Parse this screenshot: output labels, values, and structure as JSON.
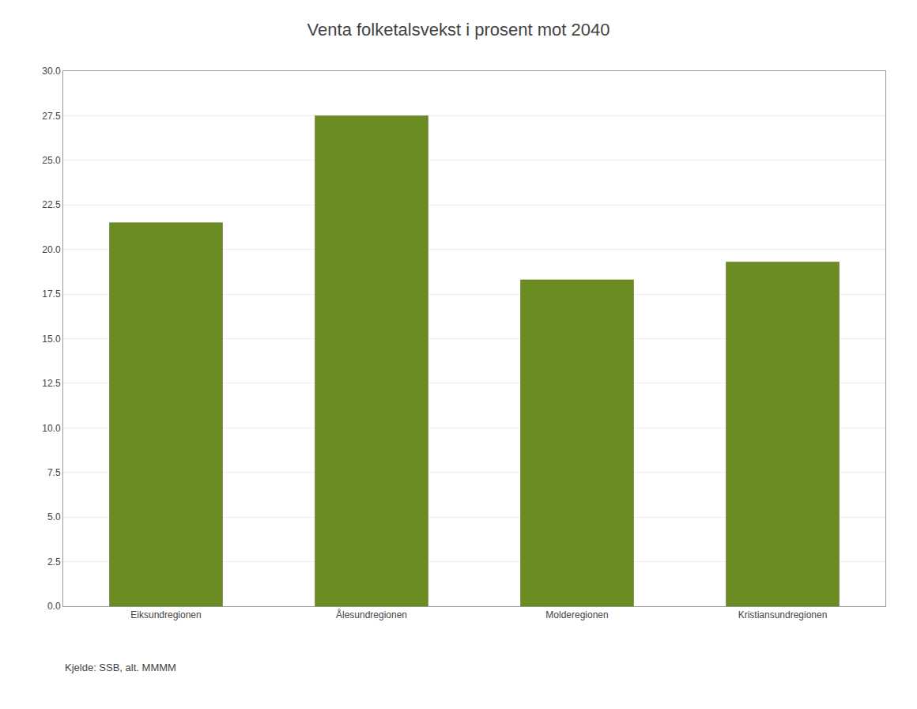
{
  "chart_data": {
    "type": "bar",
    "title": "Venta folketalsvekst i prosent mot 2040",
    "categories": [
      "Eiksundregionen",
      "Ålesundregionen",
      "Molderegionen",
      "Kristiansundregionen"
    ],
    "values": [
      21.5,
      27.5,
      18.3,
      19.3
    ],
    "color": "#6b8c23",
    "ylim": [
      0,
      30
    ],
    "yticks": [
      {
        "value": 0,
        "label": "0.0"
      },
      2.5,
      {
        "value": 5,
        "label": "5.0"
      },
      7.5,
      {
        "value": 10,
        "label": "10.0"
      },
      12.5,
      {
        "value": 15,
        "label": "15.0"
      },
      17.5,
      {
        "value": 20,
        "label": "20.0"
      },
      22.5,
      {
        "value": 25,
        "label": "25.0"
      },
      27.5,
      {
        "value": 30,
        "label": "30.0"
      }
    ],
    "grid": true,
    "annotations": [
      {
        "text": "Kjelde: SSB, alt. MMMM"
      }
    ]
  }
}
